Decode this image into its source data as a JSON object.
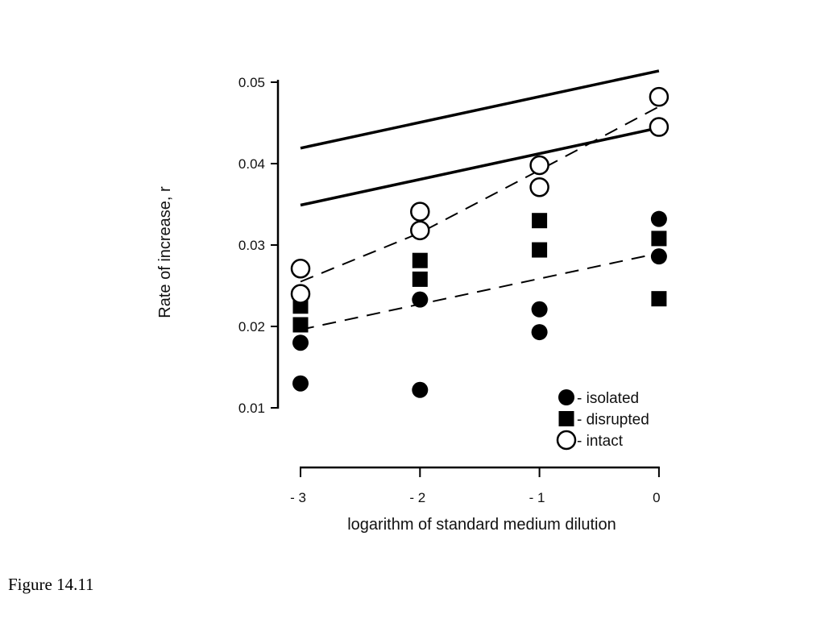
{
  "caption": "Figure 14.11",
  "chart_data": {
    "type": "scatter",
    "ylabel": "Rate of increase, r",
    "xlabel": "logarithm of standard medium dilution",
    "yticks": [
      0.01,
      0.02,
      0.03,
      0.04,
      0.05
    ],
    "ytick_labels": [
      "0.01",
      "0.02",
      "0.03",
      "0.04",
      "0.05"
    ],
    "xticks": [
      -3,
      -2,
      -1,
      0
    ],
    "xtick_labels": [
      "- 3",
      "- 2",
      "- 1",
      "0"
    ],
    "xlim": [
      -3,
      0
    ],
    "ylim": [
      0.01,
      0.05
    ],
    "grid": false,
    "legend_position": "bottom-right",
    "series": [
      {
        "name": "- isolated",
        "marker": "filled-circle",
        "color": "#000000",
        "points": [
          {
            "x": -3,
            "y": 0.018
          },
          {
            "x": -3,
            "y": 0.013
          },
          {
            "x": -2,
            "y": 0.0233
          },
          {
            "x": -2,
            "y": 0.0122
          },
          {
            "x": -1,
            "y": 0.0221
          },
          {
            "x": -1,
            "y": 0.0193
          },
          {
            "x": 0,
            "y": 0.0332
          },
          {
            "x": 0,
            "y": 0.0286
          }
        ]
      },
      {
        "name": "- disrupted",
        "marker": "filled-square",
        "color": "#000000",
        "points": [
          {
            "x": -3,
            "y": 0.0225
          },
          {
            "x": -3,
            "y": 0.0202
          },
          {
            "x": -2,
            "y": 0.0281
          },
          {
            "x": -2,
            "y": 0.0258
          },
          {
            "x": -1,
            "y": 0.033
          },
          {
            "x": -1,
            "y": 0.0294
          },
          {
            "x": 0,
            "y": 0.0308
          },
          {
            "x": 0,
            "y": 0.0234
          }
        ]
      },
      {
        "name": "- intact",
        "marker": "open-circle",
        "color": "#000000",
        "points": [
          {
            "x": -3,
            "y": 0.0271
          },
          {
            "x": -3,
            "y": 0.024
          },
          {
            "x": -2,
            "y": 0.0341
          },
          {
            "x": -2,
            "y": 0.0318
          },
          {
            "x": -1,
            "y": 0.0398
          },
          {
            "x": -1,
            "y": 0.0371
          },
          {
            "x": 0,
            "y": 0.0482
          },
          {
            "x": 0,
            "y": 0.0445
          }
        ]
      }
    ],
    "lines": [
      {
        "style": "solid",
        "points": [
          {
            "x": -3,
            "y": 0.0419
          },
          {
            "x": 0,
            "y": 0.0514
          }
        ]
      },
      {
        "style": "solid",
        "points": [
          {
            "x": -3,
            "y": 0.0349
          },
          {
            "x": 0,
            "y": 0.0444
          }
        ]
      },
      {
        "style": "dashed",
        "points": [
          {
            "x": -3,
            "y": 0.0255
          },
          {
            "x": -2,
            "y": 0.0315
          },
          {
            "x": -1,
            "y": 0.0392
          },
          {
            "x": 0,
            "y": 0.047
          }
        ]
      },
      {
        "style": "dashed",
        "points": [
          {
            "x": -3,
            "y": 0.0196
          },
          {
            "x": 0,
            "y": 0.029
          }
        ]
      }
    ]
  }
}
